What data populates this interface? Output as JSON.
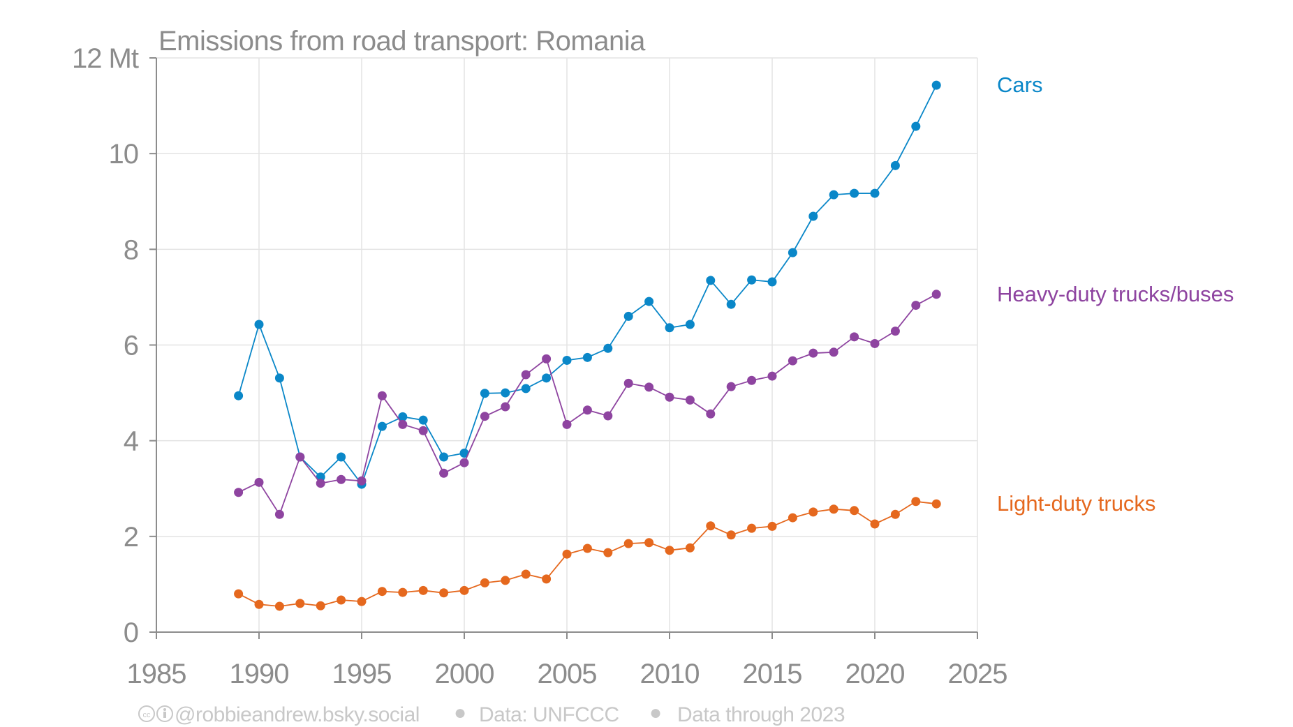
{
  "chart_data": {
    "type": "line",
    "title": "Emissions from road transport: Romania",
    "xlabel": "",
    "ylabel": "",
    "y_unit_label": "Mt",
    "xlim": [
      1985,
      2025
    ],
    "ylim": [
      0,
      12
    ],
    "x_ticks": [
      1985,
      1990,
      1995,
      2000,
      2005,
      2010,
      2015,
      2020,
      2025
    ],
    "x_tick_labels": [
      "1985",
      "1990",
      "1995",
      "2000",
      "2005",
      "2010",
      "2015",
      "2020",
      "2025"
    ],
    "y_ticks": [
      0,
      2,
      4,
      6,
      8,
      10,
      12
    ],
    "y_tick_labels": [
      "0",
      "2",
      "4",
      "6",
      "8",
      "10",
      "12 Mt"
    ],
    "grid": true,
    "legend": "direct labels at right end of each series",
    "x": [
      1989,
      1990,
      1991,
      1992,
      1993,
      1994,
      1995,
      1996,
      1997,
      1998,
      1999,
      2000,
      2001,
      2002,
      2003,
      2004,
      2005,
      2006,
      2007,
      2008,
      2009,
      2010,
      2011,
      2012,
      2013,
      2014,
      2015,
      2016,
      2017,
      2018,
      2019,
      2020,
      2021,
      2022,
      2023
    ],
    "series": [
      {
        "name": "Cars",
        "color": "#0a87c8",
        "values": [
          4.94,
          6.43,
          5.31,
          3.66,
          3.24,
          3.66,
          3.09,
          4.3,
          4.5,
          4.43,
          3.66,
          3.74,
          4.99,
          5.0,
          5.09,
          5.31,
          5.68,
          5.74,
          5.93,
          6.6,
          6.91,
          6.36,
          6.43,
          7.35,
          6.85,
          7.36,
          7.32,
          7.93,
          8.69,
          9.14,
          9.17,
          9.17,
          9.75,
          10.57,
          11.43
        ]
      },
      {
        "name": "Heavy-duty trucks/buses",
        "color": "#8e44a0",
        "values": [
          2.92,
          3.13,
          2.46,
          3.66,
          3.11,
          3.19,
          3.16,
          4.94,
          4.34,
          4.21,
          3.32,
          3.54,
          4.51,
          4.71,
          5.38,
          5.71,
          4.34,
          4.64,
          4.52,
          5.2,
          5.12,
          4.91,
          4.85,
          4.56,
          5.13,
          5.26,
          5.35,
          5.67,
          5.83,
          5.85,
          6.17,
          6.03,
          6.29,
          6.83,
          7.06
        ]
      },
      {
        "name": "Light-duty trucks",
        "color": "#e5681e",
        "values": [
          0.8,
          0.58,
          0.54,
          0.6,
          0.55,
          0.67,
          0.64,
          0.85,
          0.83,
          0.87,
          0.82,
          0.87,
          1.03,
          1.08,
          1.21,
          1.11,
          1.63,
          1.75,
          1.66,
          1.85,
          1.87,
          1.71,
          1.76,
          2.22,
          2.03,
          2.17,
          2.21,
          2.39,
          2.51,
          2.57,
          2.54,
          2.26,
          2.46,
          2.73,
          2.68
        ]
      }
    ]
  },
  "footer": {
    "license_icons": "cc-by-icons",
    "author": "@robbieandrew.bsky.social",
    "separator": "●",
    "source": "Data: UNFCCC",
    "coverage": "Data through 2023"
  }
}
